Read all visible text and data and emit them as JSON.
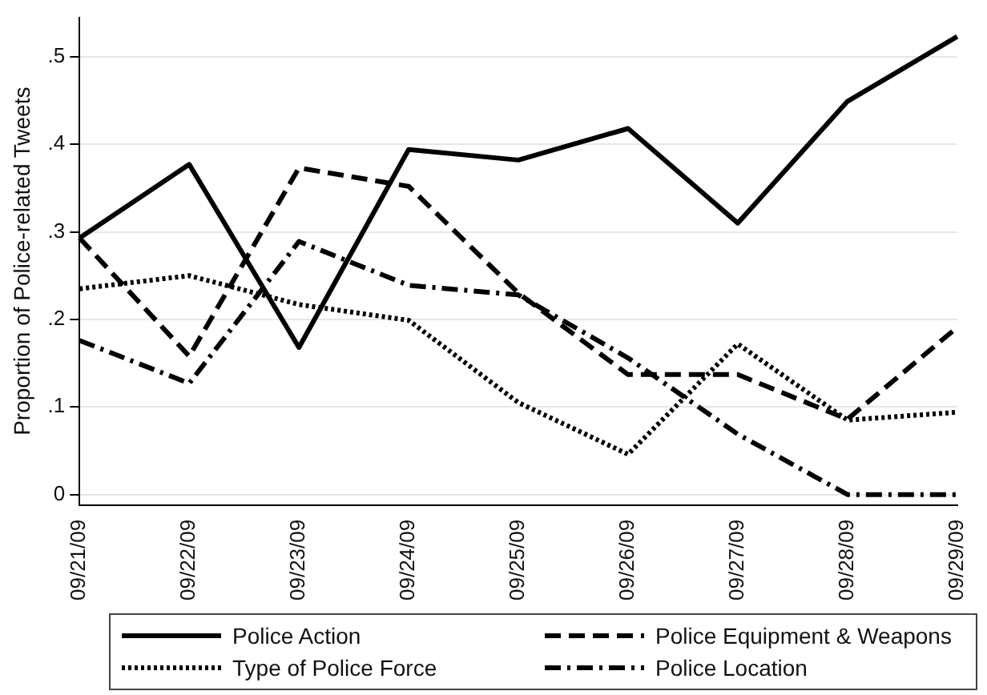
{
  "chart_data": {
    "type": "line",
    "ylabel": "Proportion of Police-related Tweets",
    "categories": [
      "09/21/09",
      "09/22/09",
      "09/23/09",
      "09/24/09",
      "09/25/09",
      "09/26/09",
      "09/27/09",
      "09/28/09",
      "09/29/09"
    ],
    "series": [
      {
        "name": "Police Action",
        "color": "#000000",
        "line_style": "solid",
        "values": [
          0.293,
          0.377,
          0.168,
          0.394,
          0.382,
          0.418,
          0.31,
          0.449,
          0.523
        ]
      },
      {
        "name": "Police Equipment & Weapons",
        "color": "#000000",
        "line_style": "dashed",
        "values": [
          0.293,
          0.158,
          0.373,
          0.352,
          0.23,
          0.137,
          0.137,
          0.086,
          0.191
        ]
      },
      {
        "name": "Type of Police Force",
        "color": "#000000",
        "line_style": "dotted",
        "values": [
          0.235,
          0.25,
          0.217,
          0.199,
          0.105,
          0.046,
          0.172,
          0.085,
          0.094
        ]
      },
      {
        "name": "Police Location",
        "color": "#000000",
        "line_style": "dashdot",
        "values": [
          0.176,
          0.127,
          0.289,
          0.239,
          0.228,
          0.156,
          0.069,
          0,
          0
        ]
      }
    ],
    "ylim": [
      -0.012,
      0.545
    ],
    "yticks": [
      0,
      {
        "value": 0.1,
        "label": ".1"
      },
      {
        "value": 0.2,
        "label": ".2"
      },
      {
        "value": 0.3,
        "label": ".3"
      },
      {
        "value": 0.4,
        "label": ".4"
      },
      {
        "value": 0.5,
        "label": ".5"
      }
    ],
    "grid": "y",
    "legend": "bottom",
    "marker": "none"
  }
}
